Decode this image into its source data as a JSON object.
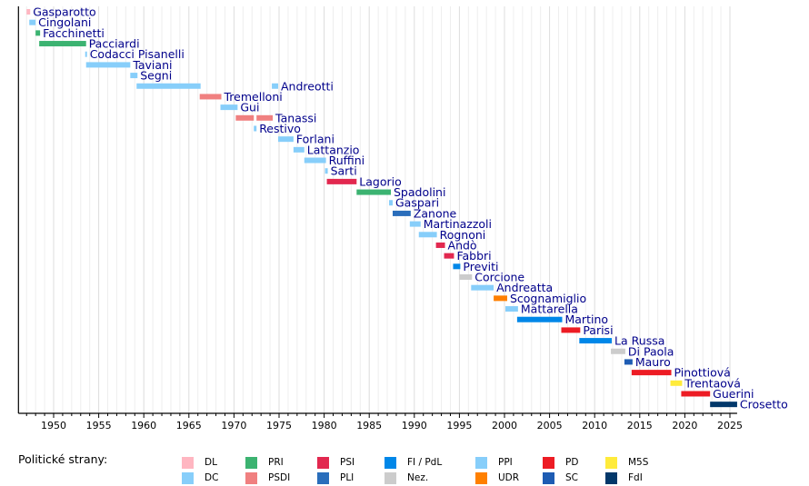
{
  "chart_data": {
    "type": "timeline",
    "title": "",
    "xlabel": "",
    "ylabel": "",
    "xlim": [
      1946.1,
      2025.8
    ],
    "x_ticks": [
      1950,
      1955,
      1960,
      1965,
      1970,
      1975,
      1980,
      1985,
      1990,
      1995,
      2000,
      2005,
      2010,
      2015,
      2020,
      2025
    ],
    "grid": true,
    "parties": {
      "DL": {
        "label": "DL",
        "color": "#ffb6c1"
      },
      "DC": {
        "label": "DC",
        "color": "#87cefa"
      },
      "PRI": {
        "label": "PRI",
        "color": "#3cb371"
      },
      "PSDI": {
        "label": "PSDI",
        "color": "#f08080"
      },
      "PSI": {
        "label": "PSI",
        "color": "#e2284f"
      },
      "PLI": {
        "label": "PLI",
        "color": "#2a6ebb"
      },
      "FI": {
        "label": "FI / PdL",
        "color": "#0087e8"
      },
      "NEZ": {
        "label": "Nez.",
        "color": "#cccccc"
      },
      "PPI": {
        "label": "PPI",
        "color": "#87cefa"
      },
      "UDR": {
        "label": "UDR",
        "color": "#ff8000"
      },
      "PD": {
        "label": "PD",
        "color": "#ed1c24"
      },
      "SC": {
        "label": "SC",
        "color": "#1e5cb3"
      },
      "M5S": {
        "label": "M5S",
        "color": "#ffeb3b"
      },
      "FdI": {
        "label": "FdI",
        "color": "#03386a"
      }
    },
    "rows": [
      {
        "name": "Gasparotto",
        "bars": [
          {
            "start": 1947.0,
            "end": 1947.4,
            "party": "DL"
          }
        ]
      },
      {
        "name": "Cingolani",
        "bars": [
          {
            "start": 1947.3,
            "end": 1948.0,
            "party": "DC"
          }
        ]
      },
      {
        "name": "Facchinetti",
        "bars": [
          {
            "start": 1948.0,
            "end": 1948.5,
            "party": "PRI"
          }
        ]
      },
      {
        "name": "Pacciardi",
        "bars": [
          {
            "start": 1948.4,
            "end": 1953.6,
            "party": "PRI"
          }
        ]
      },
      {
        "name": "Codacci Pisanelli",
        "bars": [
          {
            "start": 1953.5,
            "end": 1953.7,
            "party": "DC"
          }
        ]
      },
      {
        "name": "Taviani",
        "bars": [
          {
            "start": 1953.6,
            "end": 1958.5,
            "party": "DC"
          }
        ]
      },
      {
        "name": "Segni",
        "bars": [
          {
            "start": 1958.5,
            "end": 1959.3,
            "party": "DC"
          }
        ]
      },
      {
        "name": "Andreotti",
        "bars": [
          {
            "start": 1959.2,
            "end": 1966.3,
            "party": "DC"
          },
          {
            "start": 1974.2,
            "end": 1974.9,
            "party": "DC"
          }
        ]
      },
      {
        "name": "Tremelloni",
        "bars": [
          {
            "start": 1966.2,
            "end": 1968.6,
            "party": "PSDI"
          }
        ]
      },
      {
        "name": "Gui",
        "bars": [
          {
            "start": 1968.5,
            "end": 1970.4,
            "party": "DC"
          }
        ]
      },
      {
        "name": "Tanassi",
        "bars": [
          {
            "start": 1970.2,
            "end": 1972.2,
            "party": "PSDI"
          },
          {
            "start": 1972.5,
            "end": 1974.3,
            "party": "PSDI"
          }
        ]
      },
      {
        "name": "Restivo",
        "bars": [
          {
            "start": 1972.2,
            "end": 1972.5,
            "party": "DC"
          }
        ]
      },
      {
        "name": "Forlani",
        "bars": [
          {
            "start": 1974.9,
            "end": 1976.6,
            "party": "DC"
          }
        ]
      },
      {
        "name": "Lattanzio",
        "bars": [
          {
            "start": 1976.6,
            "end": 1977.8,
            "party": "DC"
          }
        ]
      },
      {
        "name": "Ruffini",
        "bars": [
          {
            "start": 1977.8,
            "end": 1980.2,
            "party": "DC"
          }
        ]
      },
      {
        "name": "Sarti",
        "bars": [
          {
            "start": 1980.1,
            "end": 1980.4,
            "party": "DC"
          }
        ]
      },
      {
        "name": "Lagorio",
        "bars": [
          {
            "start": 1980.3,
            "end": 1983.6,
            "party": "PSI"
          }
        ]
      },
      {
        "name": "Spadolini",
        "bars": [
          {
            "start": 1983.6,
            "end": 1987.4,
            "party": "PRI"
          }
        ]
      },
      {
        "name": "Gaspari",
        "bars": [
          {
            "start": 1987.2,
            "end": 1987.6,
            "party": "DC"
          }
        ]
      },
      {
        "name": "Zanone",
        "bars": [
          {
            "start": 1987.6,
            "end": 1989.6,
            "party": "PLI"
          }
        ]
      },
      {
        "name": "Martinazzoli",
        "bars": [
          {
            "start": 1989.5,
            "end": 1990.7,
            "party": "DC"
          }
        ]
      },
      {
        "name": "Rognoni",
        "bars": [
          {
            "start": 1990.5,
            "end": 1992.5,
            "party": "DC"
          }
        ]
      },
      {
        "name": "Andò",
        "bars": [
          {
            "start": 1992.4,
            "end": 1993.4,
            "party": "PSI"
          }
        ]
      },
      {
        "name": "Fabbri",
        "bars": [
          {
            "start": 1993.3,
            "end": 1994.4,
            "party": "PSI"
          }
        ]
      },
      {
        "name": "Previti",
        "bars": [
          {
            "start": 1994.3,
            "end": 1995.1,
            "party": "FI"
          }
        ]
      },
      {
        "name": "Corcione",
        "bars": [
          {
            "start": 1995.0,
            "end": 1996.4,
            "party": "NEZ"
          }
        ]
      },
      {
        "name": "Andreatta",
        "bars": [
          {
            "start": 1996.3,
            "end": 1998.8,
            "party": "PPI"
          }
        ]
      },
      {
        "name": "Scognamiglio",
        "bars": [
          {
            "start": 1998.8,
            "end": 2000.3,
            "party": "UDR"
          }
        ]
      },
      {
        "name": "Mattarella",
        "bars": [
          {
            "start": 2000.1,
            "end": 2001.5,
            "party": "PPI"
          }
        ]
      },
      {
        "name": "Martino",
        "bars": [
          {
            "start": 2001.4,
            "end": 2006.4,
            "party": "FI"
          }
        ]
      },
      {
        "name": "Parisi",
        "bars": [
          {
            "start": 2006.3,
            "end": 2008.4,
            "party": "PD"
          }
        ]
      },
      {
        "name": "La Russa",
        "bars": [
          {
            "start": 2008.3,
            "end": 2011.9,
            "party": "FI"
          }
        ]
      },
      {
        "name": "Di Paola",
        "bars": [
          {
            "start": 2011.8,
            "end": 2013.4,
            "party": "NEZ"
          }
        ]
      },
      {
        "name": "Mauro",
        "bars": [
          {
            "start": 2013.3,
            "end": 2014.2,
            "party": "SC"
          }
        ]
      },
      {
        "name": "Pinottiová",
        "bars": [
          {
            "start": 2014.1,
            "end": 2018.5,
            "party": "PD"
          }
        ]
      },
      {
        "name": "Trentaová",
        "bars": [
          {
            "start": 2018.4,
            "end": 2019.7,
            "party": "M5S"
          }
        ]
      },
      {
        "name": "Guerini",
        "bars": [
          {
            "start": 2019.6,
            "end": 2022.8,
            "party": "PD"
          }
        ]
      },
      {
        "name": "Crosetto",
        "bars": [
          {
            "start": 2022.8,
            "end": 2025.8,
            "party": "FdI"
          }
        ]
      }
    ],
    "legend": {
      "title": "Politické strany:",
      "placement": "bottom",
      "columns": [
        [
          "DL",
          "DC"
        ],
        [
          "PRI",
          "PSDI"
        ],
        [
          "PSI",
          "PLI"
        ],
        [
          "FI",
          "NEZ"
        ],
        [
          "PPI",
          "UDR"
        ],
        [
          "PD",
          "SC"
        ],
        [
          "M5S",
          "FdI"
        ]
      ]
    }
  }
}
